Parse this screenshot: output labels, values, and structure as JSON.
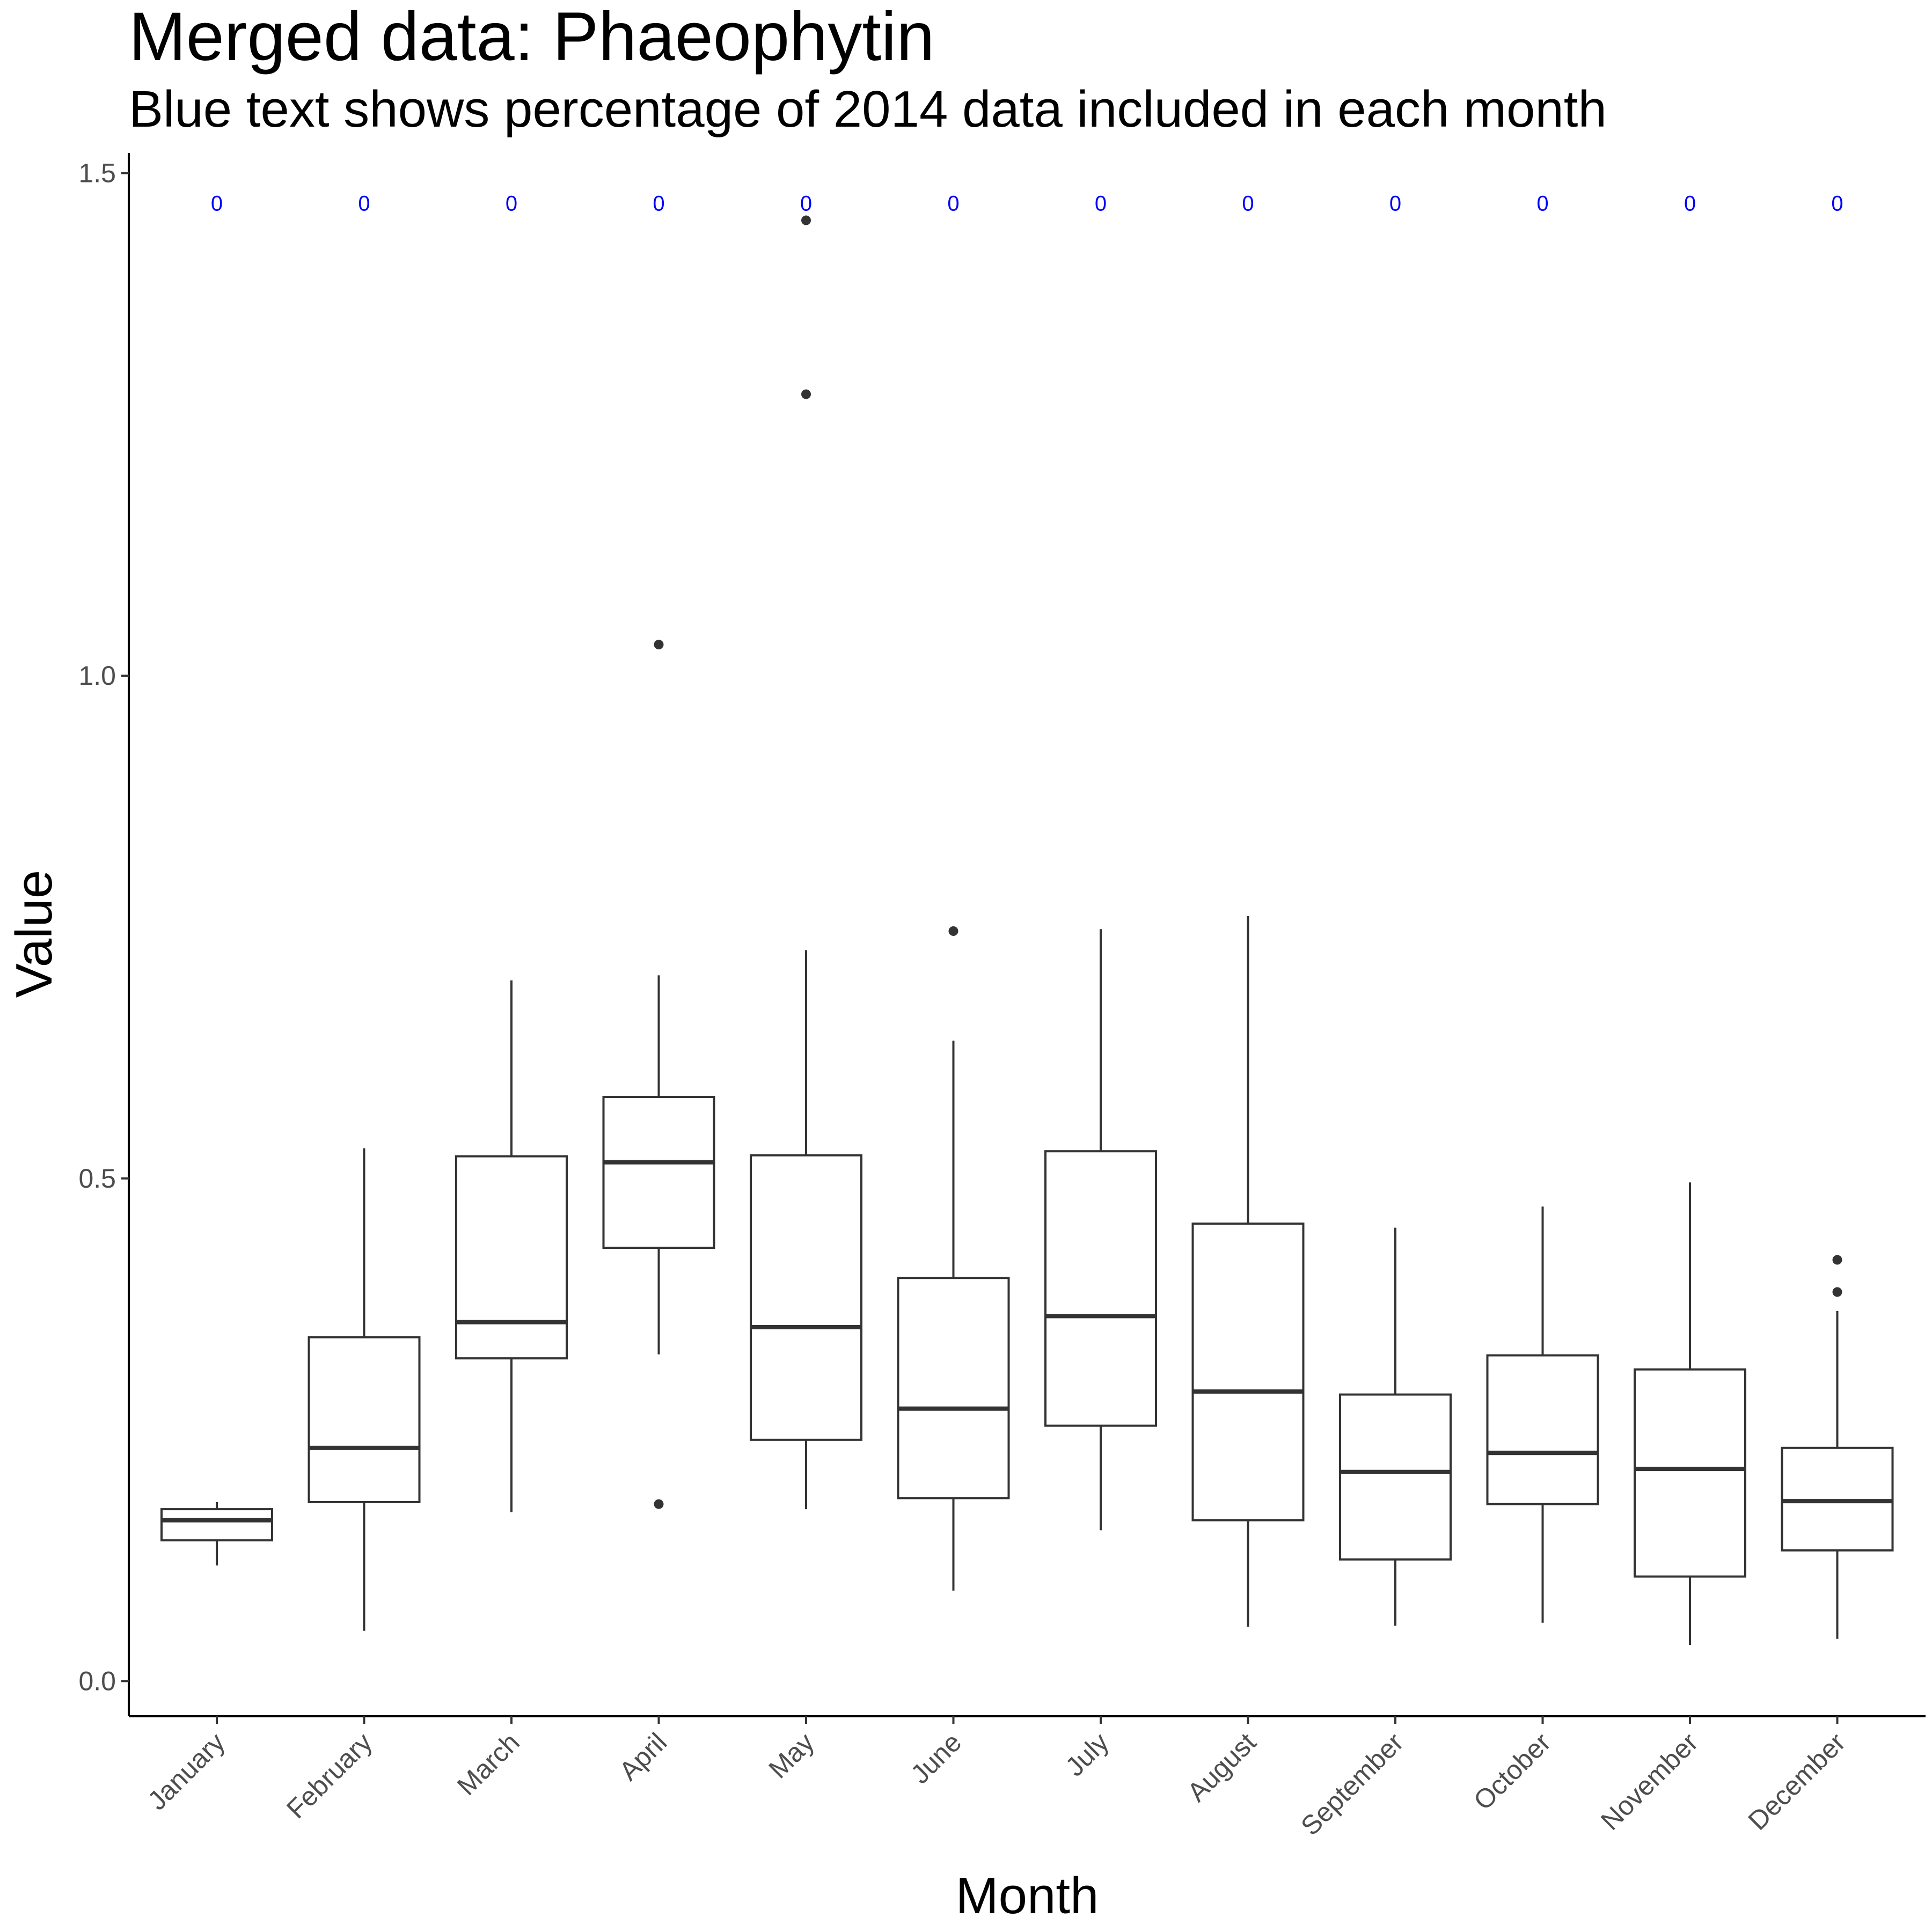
{
  "chart_data": {
    "type": "box",
    "title": "Merged data: Phaeophytin",
    "subtitle": "Blue text shows percentage of 2014 data included in each month",
    "xlabel": "Month",
    "ylabel": "Value",
    "ylim": [
      -0.035,
      1.52
    ],
    "yticks": [
      0.0,
      0.5,
      1.0,
      1.5
    ],
    "ytick_labels": [
      "0.0",
      "0.5",
      "1.0",
      "1.5"
    ],
    "grid": false,
    "colors": {
      "box_line": "#333333",
      "annotation": "#0000ff",
      "axis": "#000000"
    },
    "annotation_value_y": 1.47,
    "categories": [
      "January",
      "February",
      "March",
      "April",
      "May",
      "June",
      "July",
      "August",
      "September",
      "October",
      "November",
      "December"
    ],
    "annotations": [
      "0",
      "0",
      "0",
      "0",
      "0",
      "0",
      "0",
      "0",
      "0",
      "0",
      "0",
      "0"
    ],
    "boxes": [
      {
        "low": 0.115,
        "q1": 0.14,
        "median": 0.16,
        "q3": 0.171,
        "high": 0.178,
        "outliers": []
      },
      {
        "low": 0.05,
        "q1": 0.178,
        "median": 0.232,
        "q3": 0.342,
        "high": 0.53,
        "outliers": []
      },
      {
        "low": 0.168,
        "q1": 0.321,
        "median": 0.357,
        "q3": 0.522,
        "high": 0.697,
        "outliers": []
      },
      {
        "low": 0.325,
        "q1": 0.431,
        "median": 0.516,
        "q3": 0.581,
        "high": 0.702,
        "outliers": [
          1.031,
          0.176
        ]
      },
      {
        "low": 0.171,
        "q1": 0.24,
        "median": 0.352,
        "q3": 0.523,
        "high": 0.727,
        "outliers": [
          1.453,
          1.28
        ]
      },
      {
        "low": 0.09,
        "q1": 0.182,
        "median": 0.271,
        "q3": 0.401,
        "high": 0.637,
        "outliers": [
          0.746
        ]
      },
      {
        "low": 0.15,
        "q1": 0.254,
        "median": 0.363,
        "q3": 0.527,
        "high": 0.748,
        "outliers": []
      },
      {
        "low": 0.054,
        "q1": 0.16,
        "median": 0.288,
        "q3": 0.455,
        "high": 0.761,
        "outliers": []
      },
      {
        "low": 0.055,
        "q1": 0.121,
        "median": 0.208,
        "q3": 0.285,
        "high": 0.451,
        "outliers": []
      },
      {
        "low": 0.058,
        "q1": 0.176,
        "median": 0.227,
        "q3": 0.324,
        "high": 0.472,
        "outliers": []
      },
      {
        "low": 0.036,
        "q1": 0.104,
        "median": 0.211,
        "q3": 0.31,
        "high": 0.496,
        "outliers": []
      },
      {
        "low": 0.042,
        "q1": 0.13,
        "median": 0.179,
        "q3": 0.232,
        "high": 0.368,
        "outliers": [
          0.419,
          0.387
        ]
      }
    ]
  }
}
